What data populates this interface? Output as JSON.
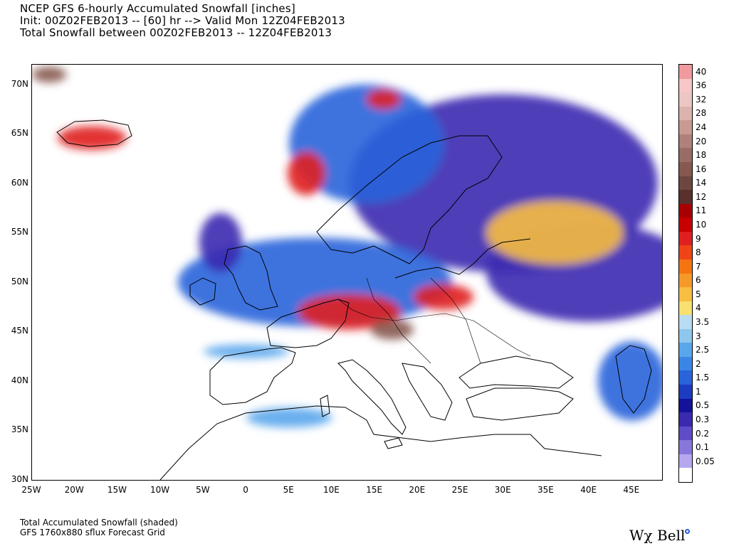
{
  "header": {
    "line1": "NCEP GFS 6-hourly Accumulated Snowfall [inches]",
    "line2": "Init: 00Z02FEB2013 -- [60] hr --> Valid Mon 12Z04FEB2013",
    "line3": "Total Snowfall between 00Z02FEB2013 -- 12Z04FEB2013"
  },
  "map": {
    "lat_range": [
      30,
      72
    ],
    "lon_range": [
      -25,
      48.5
    ],
    "lat_ticks": [
      "70N",
      "65N",
      "60N",
      "55N",
      "50N",
      "45N",
      "40N",
      "35N",
      "30N"
    ],
    "lon_ticks": [
      "25W",
      "20W",
      "15W",
      "10W",
      "5W",
      "0",
      "5E",
      "10E",
      "15E",
      "20E",
      "25E",
      "30E",
      "35E",
      "40E",
      "45E"
    ],
    "snow_regions": [
      {
        "lon": 30,
        "lat": 60,
        "rlon": 18,
        "rlat": 9,
        "level": 1
      },
      {
        "lon": 14,
        "lat": 64,
        "rlon": 9,
        "rlat": 6,
        "level": 2
      },
      {
        "lon": 40,
        "lat": 51,
        "rlon": 12,
        "rlat": 5,
        "level": 1
      },
      {
        "lon": 8,
        "lat": 50,
        "rlon": 16,
        "rlat": 4.5,
        "level": 2
      },
      {
        "lon": 36,
        "lat": 55,
        "rlon": 8,
        "rlat": 3.2,
        "level": 4
      },
      {
        "lon": 12,
        "lat": 47,
        "rlon": 6,
        "rlat": 1.8,
        "level": 5
      },
      {
        "lon": 23,
        "lat": 48.5,
        "rlon": 3.5,
        "rlat": 1.3,
        "level": 5
      },
      {
        "lon": 17,
        "lat": 45.2,
        "rlon": 2.5,
        "rlat": 1,
        "level": 6
      },
      {
        "lon": -18,
        "lat": 64.6,
        "rlon": 4,
        "rlat": 1.2,
        "level": 5
      },
      {
        "lon": 7,
        "lat": 61,
        "rlon": 2.2,
        "rlat": 2.2,
        "level": 5
      },
      {
        "lon": 16,
        "lat": 68.5,
        "rlon": 2,
        "rlat": 1,
        "level": 5
      },
      {
        "lon": -23,
        "lat": 71,
        "rlon": 2,
        "rlat": 0.8,
        "level": 6
      },
      {
        "lon": 0,
        "lat": 43,
        "rlon": 5,
        "rlat": 0.7,
        "level": 3
      },
      {
        "lon": 5,
        "lat": 36.3,
        "rlon": 5,
        "rlat": 1,
        "level": 3
      },
      {
        "lon": 45,
        "lat": 40,
        "rlon": 4,
        "rlat": 4,
        "level": 2
      },
      {
        "lon": -3,
        "lat": 54,
        "rlon": 2.5,
        "rlat": 3,
        "level": 1
      }
    ]
  },
  "legend": {
    "entries": [
      {
        "label": "40",
        "color": "#f09a9e"
      },
      {
        "label": "36",
        "color": "#f7c6c6"
      },
      {
        "label": "32",
        "color": "#ecc6c2"
      },
      {
        "label": "28",
        "color": "#dcb2ac"
      },
      {
        "label": "24",
        "color": "#c89a92"
      },
      {
        "label": "20",
        "color": "#b0807a"
      },
      {
        "label": "18",
        "color": "#9a6c66"
      },
      {
        "label": "16",
        "color": "#86584f"
      },
      {
        "label": "14",
        "color": "#6e4640"
      },
      {
        "label": "12",
        "color": "#5a302c"
      },
      {
        "label": "11",
        "color": "#a80000"
      },
      {
        "label": "10",
        "color": "#c80000"
      },
      {
        "label": "9",
        "color": "#e02020"
      },
      {
        "label": "8",
        "color": "#f04418"
      },
      {
        "label": "7",
        "color": "#f57410"
      },
      {
        "label": "6",
        "color": "#f59a28"
      },
      {
        "label": "5",
        "color": "#f7be40"
      },
      {
        "label": "4",
        "color": "#f7e070"
      },
      {
        "label": "3.5",
        "color": "#b8dcf2"
      },
      {
        "label": "3",
        "color": "#8ec6ee"
      },
      {
        "label": "2.5",
        "color": "#5aa6ec"
      },
      {
        "label": "2",
        "color": "#3a86e6"
      },
      {
        "label": "1.5",
        "color": "#2864da"
      },
      {
        "label": "1",
        "color": "#1c3cc4"
      },
      {
        "label": "0.5",
        "color": "#14129a"
      },
      {
        "label": "0.3",
        "color": "#3a2ab0"
      },
      {
        "label": "0.2",
        "color": "#5e4cc8"
      },
      {
        "label": "0.1",
        "color": "#8876da"
      },
      {
        "label": "0.05",
        "color": "#b6a6ee"
      },
      {
        "label": "",
        "color": "#ffffff"
      }
    ]
  },
  "footer": {
    "line1": "Total Accumulated Snowfall (shaded)",
    "line2": "GFS 1760x880 sflux Forecast Grid"
  },
  "brand": {
    "text": "Wχ Bell"
  }
}
